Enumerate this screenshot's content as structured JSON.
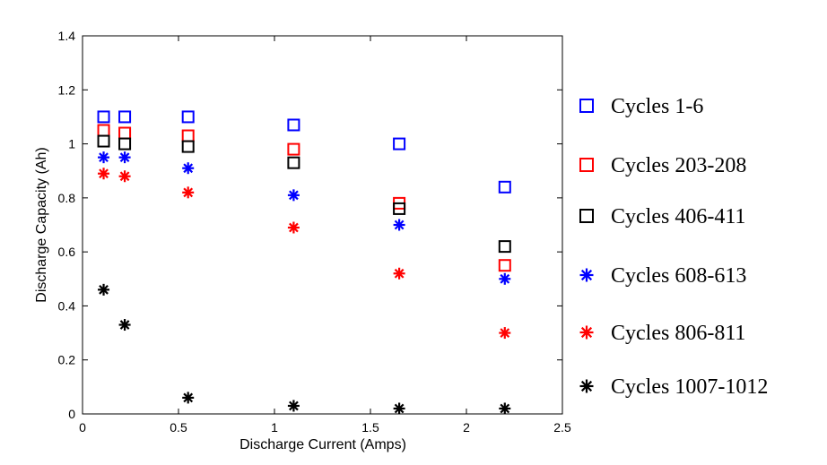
{
  "chart_data": {
    "type": "scatter",
    "xlabel": "Discharge Current (Amps)",
    "ylabel": "Discharge Capacity (Ah)",
    "xlim": [
      0,
      2.5
    ],
    "ylim": [
      0,
      1.4
    ],
    "xticks": [
      "0",
      "0.5",
      "1",
      "1.5",
      "2",
      "2.5"
    ],
    "yticks": [
      "0",
      "0.2",
      "0.4",
      "0.6",
      "0.8",
      "1",
      "1.2",
      "1.4"
    ],
    "grid": false,
    "legend_position": "right",
    "x": [
      0.11,
      0.22,
      0.55,
      1.1,
      1.65,
      2.2
    ],
    "series": [
      {
        "name": "Cycles 1-6",
        "marker": "square",
        "color": "#0000ff",
        "values": [
          1.1,
          1.1,
          1.1,
          1.07,
          1.0,
          0.84
        ]
      },
      {
        "name": "Cycles 203-208",
        "marker": "square",
        "color": "#ff0000",
        "values": [
          1.05,
          1.04,
          1.03,
          0.98,
          0.78,
          0.55
        ]
      },
      {
        "name": "Cycles 406-411",
        "marker": "square",
        "color": "#000000",
        "values": [
          1.01,
          1.0,
          0.99,
          0.93,
          0.76,
          0.62
        ]
      },
      {
        "name": "Cycles 608-613",
        "marker": "star",
        "color": "#0000ff",
        "values": [
          0.95,
          0.95,
          0.91,
          0.81,
          0.7,
          0.5
        ]
      },
      {
        "name": "Cycles 806-811",
        "marker": "star",
        "color": "#ff0000",
        "values": [
          0.89,
          0.88,
          0.82,
          0.69,
          0.52,
          0.3
        ]
      },
      {
        "name": "Cycles 1007-1012",
        "marker": "star",
        "color": "#000000",
        "values": [
          0.46,
          0.33,
          0.06,
          0.03,
          0.02,
          0.02
        ]
      }
    ]
  }
}
